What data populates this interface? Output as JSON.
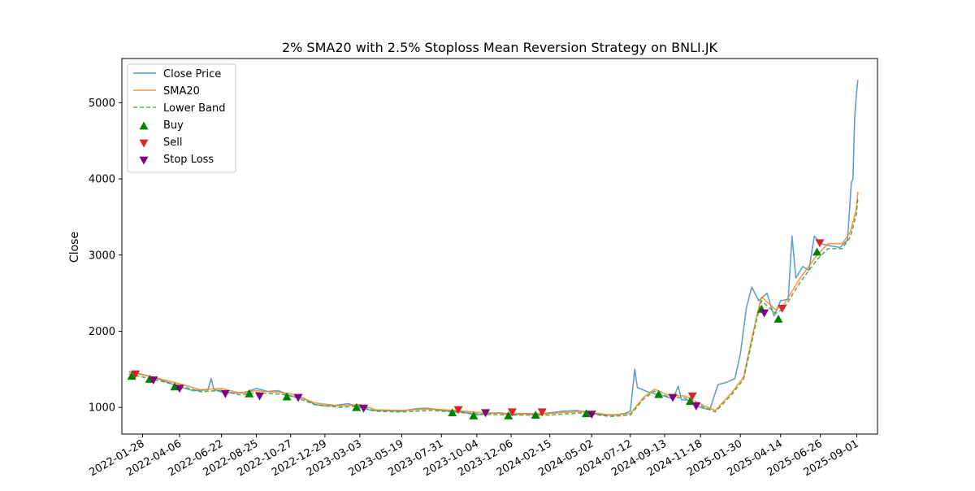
{
  "chart_data": {
    "type": "line",
    "title": "2% SMA20 with 2.5% Stoploss Mean Reversion Strategy on BNLI.JK",
    "xlabel": "",
    "ylabel": "Close",
    "x_range": [
      "2021-12-21",
      "2025-10-09"
    ],
    "ylim": [
      650,
      5580
    ],
    "y_ticks": [
      1000,
      2000,
      3000,
      4000,
      5000
    ],
    "x_ticks": [
      "2022-01-28",
      "2022-04-06",
      "2022-06-22",
      "2022-08-25",
      "2022-10-27",
      "2022-12-29",
      "2023-03-03",
      "2023-05-19",
      "2023-07-31",
      "2023-10-04",
      "2023-12-06",
      "2024-02-15",
      "2024-05-02",
      "2024-07-12",
      "2024-09-13",
      "2024-11-18",
      "2025-01-30",
      "2025-04-14",
      "2025-06-26",
      "2025-09-01"
    ],
    "grid": false,
    "legend_position": "top-left",
    "series": [
      {
        "name": "Close Price",
        "style": "line",
        "color": "#1f77b4",
        "points": [
          [
            "2022-01-03",
            1470
          ],
          [
            "2022-01-28",
            1430
          ],
          [
            "2022-02-20",
            1390
          ],
          [
            "2022-03-15",
            1330
          ],
          [
            "2022-04-06",
            1270
          ],
          [
            "2022-05-01",
            1220
          ],
          [
            "2022-05-28",
            1230
          ],
          [
            "2022-06-03",
            1380
          ],
          [
            "2022-06-08",
            1240
          ],
          [
            "2022-06-22",
            1200
          ],
          [
            "2022-07-15",
            1190
          ],
          [
            "2022-08-05",
            1200
          ],
          [
            "2022-08-25",
            1250
          ],
          [
            "2022-09-15",
            1210
          ],
          [
            "2022-10-05",
            1220
          ],
          [
            "2022-10-27",
            1150
          ],
          [
            "2022-11-20",
            1120
          ],
          [
            "2022-12-10",
            1040
          ],
          [
            "2022-12-29",
            1020
          ],
          [
            "2023-01-20",
            1030
          ],
          [
            "2023-02-10",
            1050
          ],
          [
            "2023-03-03",
            1000
          ],
          [
            "2023-03-25",
            960
          ],
          [
            "2023-04-20",
            960
          ],
          [
            "2023-05-19",
            950
          ],
          [
            "2023-06-10",
            980
          ],
          [
            "2023-07-05",
            990
          ],
          [
            "2023-07-31",
            960
          ],
          [
            "2023-08-25",
            950
          ],
          [
            "2023-09-15",
            930
          ],
          [
            "2023-10-04",
            900
          ],
          [
            "2023-10-25",
            920
          ],
          [
            "2023-11-15",
            930
          ],
          [
            "2023-12-06",
            900
          ],
          [
            "2023-12-28",
            920
          ],
          [
            "2024-01-20",
            900
          ],
          [
            "2024-02-15",
            930
          ],
          [
            "2024-03-10",
            950
          ],
          [
            "2024-04-05",
            960
          ],
          [
            "2024-04-25",
            930
          ],
          [
            "2024-05-02",
            920
          ],
          [
            "2024-05-25",
            900
          ],
          [
            "2024-06-15",
            900
          ],
          [
            "2024-07-01",
            920
          ],
          [
            "2024-07-12",
            950
          ],
          [
            "2024-07-20",
            1500
          ],
          [
            "2024-07-25",
            1260
          ],
          [
            "2024-08-15",
            1200
          ],
          [
            "2024-09-05",
            1160
          ],
          [
            "2024-09-13",
            1150
          ],
          [
            "2024-09-28",
            1110
          ],
          [
            "2024-10-08",
            1280
          ],
          [
            "2024-10-14",
            1100
          ],
          [
            "2024-10-25",
            1100
          ],
          [
            "2024-11-05",
            1050
          ],
          [
            "2024-11-18",
            1000
          ],
          [
            "2024-12-05",
            970
          ],
          [
            "2024-12-20",
            1300
          ],
          [
            "2025-01-05",
            1330
          ],
          [
            "2025-01-20",
            1380
          ],
          [
            "2025-01-30",
            1700
          ],
          [
            "2025-02-10",
            2300
          ],
          [
            "2025-02-20",
            2580
          ],
          [
            "2025-03-05",
            2400
          ],
          [
            "2025-03-20",
            2500
          ],
          [
            "2025-04-02",
            2200
          ],
          [
            "2025-04-14",
            2400
          ],
          [
            "2025-04-28",
            2420
          ],
          [
            "2025-05-05",
            3250
          ],
          [
            "2025-05-12",
            2700
          ],
          [
            "2025-05-25",
            2850
          ],
          [
            "2025-06-05",
            2800
          ],
          [
            "2025-06-15",
            3250
          ],
          [
            "2025-06-26",
            3150
          ],
          [
            "2025-07-15",
            3120
          ],
          [
            "2025-08-01",
            3100
          ],
          [
            "2025-08-15",
            3200
          ],
          [
            "2025-08-22",
            3950
          ],
          [
            "2025-08-25",
            4000
          ],
          [
            "2025-08-28",
            4800
          ],
          [
            "2025-08-31",
            5100
          ],
          [
            "2025-09-01",
            5160
          ],
          [
            "2025-09-03",
            5300
          ]
        ]
      },
      {
        "name": "SMA20",
        "style": "line",
        "color": "#ff7f0e",
        "points": [
          [
            "2022-01-03",
            1470
          ],
          [
            "2022-02-10",
            1410
          ],
          [
            "2022-04-06",
            1310
          ],
          [
            "2022-05-15",
            1230
          ],
          [
            "2022-06-22",
            1250
          ],
          [
            "2022-07-25",
            1190
          ],
          [
            "2022-08-25",
            1220
          ],
          [
            "2022-10-05",
            1200
          ],
          [
            "2022-10-27",
            1180
          ],
          [
            "2022-12-10",
            1060
          ],
          [
            "2023-01-25",
            1020
          ],
          [
            "2023-03-03",
            1040
          ],
          [
            "2023-04-01",
            970
          ],
          [
            "2023-05-19",
            960
          ],
          [
            "2023-07-10",
            980
          ],
          [
            "2023-08-25",
            960
          ],
          [
            "2023-10-15",
            930
          ],
          [
            "2023-12-06",
            920
          ],
          [
            "2024-02-15",
            920
          ],
          [
            "2024-04-15",
            950
          ],
          [
            "2024-06-05",
            900
          ],
          [
            "2024-07-12",
            920
          ],
          [
            "2024-08-05",
            1130
          ],
          [
            "2024-08-25",
            1240
          ],
          [
            "2024-09-20",
            1160
          ],
          [
            "2024-10-20",
            1150
          ],
          [
            "2024-11-25",
            1020
          ],
          [
            "2024-12-15",
            960
          ],
          [
            "2025-01-15",
            1200
          ],
          [
            "2025-02-05",
            1400
          ],
          [
            "2025-03-01",
            2200
          ],
          [
            "2025-03-10",
            2450
          ],
          [
            "2025-04-05",
            2280
          ],
          [
            "2025-04-20",
            2350
          ],
          [
            "2025-05-20",
            2700
          ],
          [
            "2025-06-20",
            3000
          ],
          [
            "2025-07-10",
            3150
          ],
          [
            "2025-08-05",
            3150
          ],
          [
            "2025-08-20",
            3300
          ],
          [
            "2025-08-31",
            3600
          ],
          [
            "2025-09-03",
            3830
          ]
        ]
      },
      {
        "name": "Lower Band",
        "style": "dashed",
        "color": "#2ca02c",
        "points": [
          [
            "2022-01-03",
            1440
          ],
          [
            "2022-02-10",
            1380
          ],
          [
            "2022-04-06",
            1285
          ],
          [
            "2022-05-15",
            1205
          ],
          [
            "2022-06-22",
            1225
          ],
          [
            "2022-07-25",
            1165
          ],
          [
            "2022-08-25",
            1195
          ],
          [
            "2022-10-05",
            1175
          ],
          [
            "2022-10-27",
            1155
          ],
          [
            "2022-12-10",
            1040
          ],
          [
            "2023-01-25",
            1000
          ],
          [
            "2023-03-03",
            1020
          ],
          [
            "2023-04-01",
            950
          ],
          [
            "2023-05-19",
            940
          ],
          [
            "2023-07-10",
            960
          ],
          [
            "2023-08-25",
            940
          ],
          [
            "2023-10-15",
            910
          ],
          [
            "2023-12-06",
            900
          ],
          [
            "2024-02-15",
            900
          ],
          [
            "2024-04-15",
            930
          ],
          [
            "2024-06-05",
            880
          ],
          [
            "2024-07-12",
            900
          ],
          [
            "2024-08-05",
            1110
          ],
          [
            "2024-08-25",
            1215
          ],
          [
            "2024-09-20",
            1135
          ],
          [
            "2024-10-20",
            1125
          ],
          [
            "2024-11-25",
            1000
          ],
          [
            "2024-12-15",
            940
          ],
          [
            "2025-01-15",
            1175
          ],
          [
            "2025-02-05",
            1370
          ],
          [
            "2025-03-01",
            2155
          ],
          [
            "2025-03-10",
            2400
          ],
          [
            "2025-04-05",
            2235
          ],
          [
            "2025-04-20",
            2300
          ],
          [
            "2025-05-20",
            2645
          ],
          [
            "2025-06-20",
            2940
          ],
          [
            "2025-07-10",
            3085
          ],
          [
            "2025-08-05",
            3085
          ],
          [
            "2025-08-20",
            3235
          ],
          [
            "2025-08-31",
            3530
          ],
          [
            "2025-09-03",
            3750
          ]
        ]
      },
      {
        "name": "Buy",
        "style": "marker-up",
        "color": "#008000",
        "points": [
          [
            "2022-01-08",
            1410
          ],
          [
            "2022-02-10",
            1370
          ],
          [
            "2022-03-28",
            1270
          ],
          [
            "2022-08-12",
            1180
          ],
          [
            "2022-10-20",
            1140
          ],
          [
            "2023-02-25",
            1000
          ],
          [
            "2023-08-20",
            930
          ],
          [
            "2023-09-28",
            890
          ],
          [
            "2023-12-01",
            890
          ],
          [
            "2024-01-20",
            900
          ],
          [
            "2024-04-22",
            920
          ],
          [
            "2024-09-02",
            1170
          ],
          [
            "2024-10-30",
            1080
          ],
          [
            "2025-03-10",
            2290
          ],
          [
            "2025-04-10",
            2160
          ],
          [
            "2025-06-20",
            3040
          ]
        ]
      },
      {
        "name": "Sell",
        "style": "marker-down",
        "color": "#d62728",
        "points": [
          [
            "2022-01-15",
            1440
          ],
          [
            "2023-08-31",
            970
          ],
          [
            "2023-12-08",
            940
          ],
          [
            "2024-02-01",
            940
          ],
          [
            "2024-11-03",
            1150
          ],
          [
            "2025-04-17",
            2300
          ],
          [
            "2025-06-25",
            3160
          ]
        ]
      },
      {
        "name": "Stop Loss",
        "style": "marker-down",
        "color": "#800080",
        "points": [
          [
            "2022-02-17",
            1360
          ],
          [
            "2022-04-06",
            1250
          ],
          [
            "2022-06-29",
            1180
          ],
          [
            "2022-08-31",
            1150
          ],
          [
            "2022-11-10",
            1130
          ],
          [
            "2023-03-10",
            990
          ],
          [
            "2023-10-20",
            930
          ],
          [
            "2024-05-02",
            910
          ],
          [
            "2024-09-28",
            1130
          ],
          [
            "2024-11-10",
            1020
          ],
          [
            "2025-03-15",
            2240
          ]
        ]
      }
    ]
  }
}
